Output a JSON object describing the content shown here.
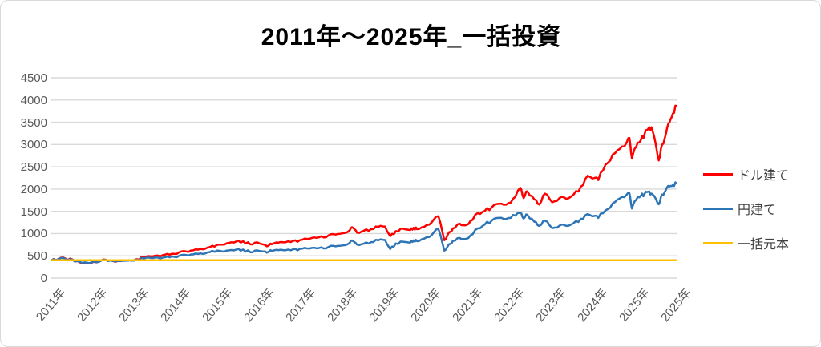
{
  "title": "2011年～2025年_一括投資",
  "legend": [
    {
      "label": "ドル建て",
      "color": "#FF0000"
    },
    {
      "label": "円建て",
      "color": "#2E75B6"
    },
    {
      "label": "一括元本",
      "color": "#FFC000"
    }
  ],
  "colors": {
    "dollar_line": "#FF0000",
    "yen_line": "#2E75B6",
    "principal_line": "#FFC000",
    "gridline": "#D9D9D9",
    "tick_text": "#595959",
    "title_text": "#000000"
  },
  "chart_data": {
    "type": "line",
    "title": "2011年～2025年_一括投資",
    "xlabel": "",
    "ylabel": "",
    "ylim": [
      0,
      4500
    ],
    "y_ticks": [
      0,
      500,
      1000,
      1500,
      2000,
      2500,
      3000,
      3500,
      4000,
      4500
    ],
    "x_tick_labels": [
      "2011年",
      "2012年",
      "2013年",
      "2014年",
      "2015年",
      "2016年",
      "2017年",
      "2018年",
      "2019年",
      "2020年",
      "2021年",
      "2022年",
      "2023年",
      "2024年",
      "2025年",
      "2025年"
    ],
    "grid": "horizontal",
    "legend_position": "right",
    "x_years": [
      2011.0,
      2011.17,
      2011.33,
      2011.5,
      2011.67,
      2011.83,
      2012.0,
      2012.17,
      2012.33,
      2012.5,
      2012.67,
      2012.83,
      2013.0,
      2013.17,
      2013.33,
      2013.5,
      2013.67,
      2013.83,
      2014.0,
      2014.17,
      2014.33,
      2014.5,
      2014.67,
      2014.83,
      2015.0,
      2015.17,
      2015.33,
      2015.5,
      2015.67,
      2015.83,
      2016.0,
      2016.08,
      2016.17,
      2016.33,
      2016.5,
      2016.67,
      2016.83,
      2017.0,
      2017.17,
      2017.33,
      2017.5,
      2017.67,
      2017.83,
      2018.0,
      2018.08,
      2018.17,
      2018.33,
      2018.5,
      2018.67,
      2018.83,
      2018.95,
      2019.08,
      2019.25,
      2019.42,
      2019.5,
      2019.58,
      2019.75,
      2019.92,
      2020.08,
      2020.22,
      2020.33,
      2020.42,
      2020.58,
      2020.7,
      2020.83,
      2021.0,
      2021.17,
      2021.33,
      2021.5,
      2021.67,
      2021.83,
      2022.0,
      2022.08,
      2022.17,
      2022.33,
      2022.45,
      2022.58,
      2022.75,
      2022.92,
      2023.08,
      2023.25,
      2023.42,
      2023.58,
      2023.75,
      2023.83,
      2024.0,
      2024.17,
      2024.33,
      2024.5,
      2024.56,
      2024.62,
      2024.72,
      2024.83,
      2024.92,
      2025.0,
      2025.08,
      2025.17,
      2025.25,
      2025.33,
      2025.42,
      2025.5,
      2025.58,
      2025.67
    ],
    "series": [
      {
        "name": "ドル建て",
        "color": "#FF0000",
        "values": [
          400,
          430,
          440,
          415,
          355,
          340,
          365,
          398,
          388,
          365,
          388,
          402,
          425,
          462,
          488,
          505,
          528,
          548,
          580,
          595,
          622,
          655,
          688,
          705,
          752,
          792,
          818,
          828,
          758,
          802,
          748,
          722,
          758,
          798,
          806,
          836,
          852,
          880,
          912,
          938,
          955,
          978,
          1005,
          1072,
          1128,
          1022,
          1062,
          1098,
          1148,
          1155,
          942,
          1055,
          1108,
          1078,
          1128,
          1098,
          1152,
          1248,
          1388,
          852,
          1032,
          1118,
          1222,
          1182,
          1282,
          1458,
          1508,
          1588,
          1668,
          1648,
          1778,
          2028,
          1798,
          1948,
          1768,
          1652,
          1898,
          1702,
          1798,
          1782,
          1872,
          2052,
          2298,
          2252,
          2202,
          2548,
          2778,
          2898,
          3052,
          3148,
          2682,
          2948,
          3098,
          3248,
          3348,
          3388,
          3052,
          2642,
          2998,
          3248,
          3498,
          3698,
          3868
        ]
      },
      {
        "name": "円建て",
        "color": "#2E75B6",
        "values": [
          400,
          425,
          430,
          405,
          365,
          350,
          370,
          392,
          382,
          372,
          388,
          398,
          415,
          438,
          452,
          460,
          468,
          488,
          500,
          515,
          532,
          555,
          578,
          590,
          602,
          622,
          635,
          640,
          582,
          622,
          598,
          582,
          608,
          628,
          626,
          645,
          656,
          666,
          680,
          690,
          698,
          712,
          732,
          792,
          828,
          752,
          772,
          808,
          848,
          855,
          652,
          778,
          818,
          798,
          848,
          828,
          888,
          962,
          1105,
          618,
          762,
          838,
          902,
          878,
          958,
          1118,
          1205,
          1288,
          1352,
          1328,
          1418,
          1462,
          1338,
          1418,
          1268,
          1172,
          1288,
          1122,
          1178,
          1172,
          1232,
          1332,
          1438,
          1398,
          1352,
          1522,
          1682,
          1788,
          1878,
          1908,
          1562,
          1758,
          1848,
          1898,
          1938,
          1898,
          1798,
          1658,
          1878,
          1988,
          2058,
          2088,
          2118
        ]
      },
      {
        "name": "一括元本",
        "color": "#FFC000",
        "constant": 400
      }
    ]
  }
}
